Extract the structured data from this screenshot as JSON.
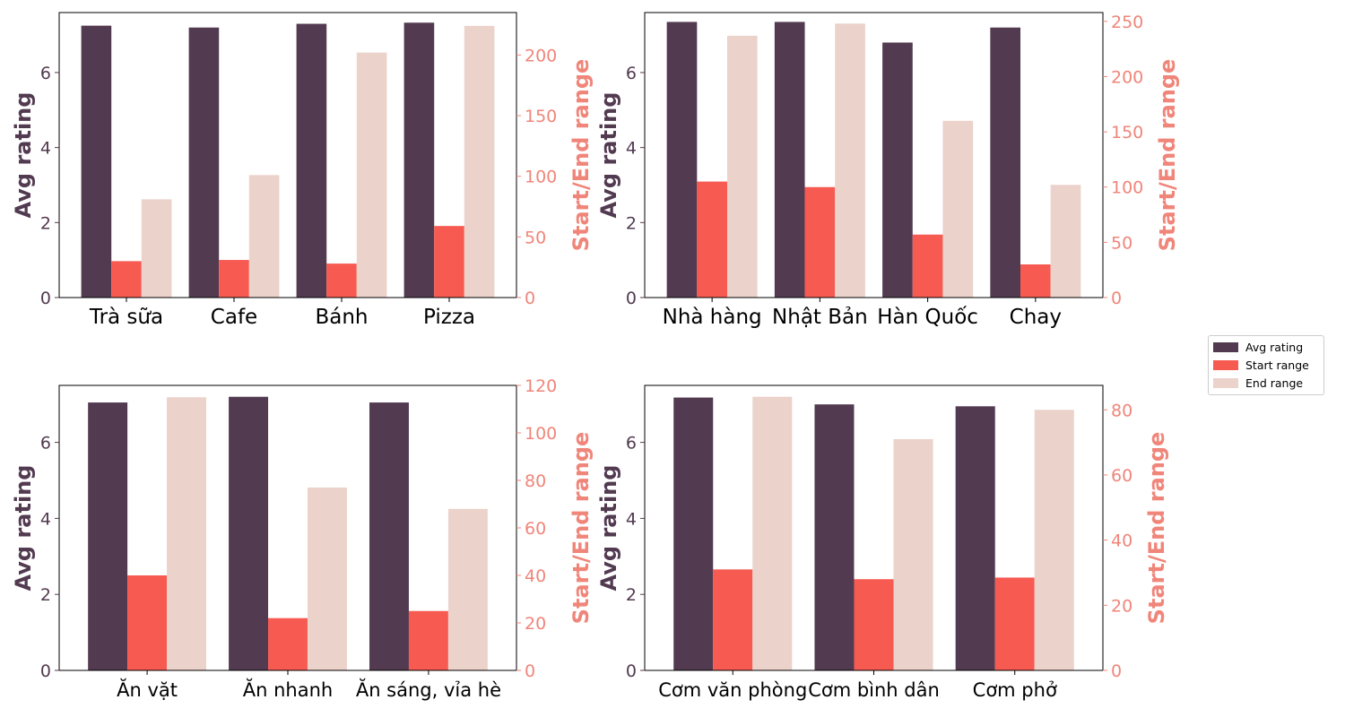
{
  "colors": {
    "avg_rating": "#523a50",
    "start_range": "#f65a51",
    "end_range": "#ebd2ca",
    "left_axis": "#523a50",
    "right_axis": "#f0857a"
  },
  "legend": {
    "avg_rating": "Avg rating",
    "start_range": "Start range",
    "end_range": "End range"
  },
  "chart_data": [
    {
      "type": "bar",
      "panel": "top-left",
      "categories": [
        "Trà sữa",
        "Cafe",
        "Bánh",
        "Pizza"
      ],
      "series": [
        {
          "name": "Avg rating",
          "axis": "left",
          "values": [
            7.25,
            7.2,
            7.3,
            7.33
          ]
        },
        {
          "name": "Start range",
          "axis": "right",
          "values": [
            30,
            31,
            28,
            59
          ]
        },
        {
          "name": "End range",
          "axis": "right",
          "values": [
            81,
            101,
            202,
            224
          ]
        }
      ],
      "ylabel": "Avg rating",
      "y2label": "Start/End range",
      "ylim": [
        0,
        7.6
      ],
      "y2lim": [
        0,
        235
      ],
      "yticks": [
        0,
        2,
        4,
        6
      ],
      "y2ticks": [
        0,
        50,
        100,
        150,
        200
      ]
    },
    {
      "type": "bar",
      "panel": "top-right",
      "categories": [
        "Nhà hàng",
        "Nhật Bản",
        "Hàn Quốc",
        "Chay"
      ],
      "series": [
        {
          "name": "Avg rating",
          "axis": "left",
          "values": [
            7.35,
            7.35,
            6.8,
            7.2
          ]
        },
        {
          "name": "Start range",
          "axis": "right",
          "values": [
            105,
            100,
            57,
            30
          ]
        },
        {
          "name": "End range",
          "axis": "right",
          "values": [
            237,
            248,
            160,
            102
          ]
        }
      ],
      "ylabel": "Avg rating",
      "y2label": "Start/End range",
      "ylim": [
        0,
        7.6
      ],
      "y2lim": [
        0,
        258
      ],
      "yticks": [
        0,
        2,
        4,
        6
      ],
      "y2ticks": [
        0,
        50,
        100,
        150,
        200,
        250
      ]
    },
    {
      "type": "bar",
      "panel": "bottom-left",
      "categories": [
        "Ăn vặt",
        "Ăn nhanh",
        "Ăn sáng, vỉa hè"
      ],
      "series": [
        {
          "name": "Avg rating",
          "axis": "left",
          "values": [
            7.05,
            7.2,
            7.05
          ]
        },
        {
          "name": "Start range",
          "axis": "right",
          "values": [
            40,
            22,
            25
          ]
        },
        {
          "name": "End range",
          "axis": "right",
          "values": [
            115,
            77,
            68
          ]
        }
      ],
      "ylabel": "Avg rating",
      "y2label": "Start/End range",
      "ylim": [
        0,
        7.5
      ],
      "y2lim": [
        0,
        120
      ],
      "yticks": [
        0,
        2,
        4,
        6
      ],
      "y2ticks": [
        0,
        20,
        40,
        60,
        80,
        100,
        120
      ]
    },
    {
      "type": "bar",
      "panel": "bottom-right",
      "categories": [
        "Cơm văn phòng",
        "Cơm bình dân",
        "Cơm phở"
      ],
      "series": [
        {
          "name": "Avg rating",
          "axis": "left",
          "values": [
            7.18,
            7.0,
            6.95
          ]
        },
        {
          "name": "Start range",
          "axis": "right",
          "values": [
            31,
            28,
            28.5
          ]
        },
        {
          "name": "End range",
          "axis": "right",
          "values": [
            84,
            71,
            80
          ]
        }
      ],
      "ylabel": "Avg rating",
      "y2label": "Start/End range",
      "ylim": [
        0,
        7.5
      ],
      "y2lim": [
        0,
        87.5
      ],
      "yticks": [
        0,
        2,
        4,
        6
      ],
      "y2ticks": [
        0,
        20,
        40,
        60,
        80
      ]
    }
  ]
}
